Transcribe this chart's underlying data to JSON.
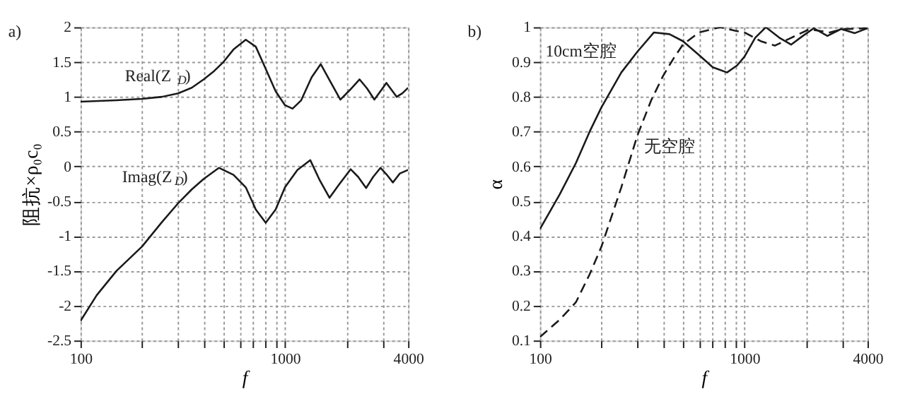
{
  "chart_data": [
    {
      "type": "line",
      "xlabel": "f",
      "ylabel": "阻抗×ρ₀c₀",
      "log": "x",
      "grid": true,
      "xlim": [
        100,
        4000
      ],
      "xticks": [
        100,
        {
          "value": 200,
          "label": null
        },
        {
          "value": 300,
          "label": null
        },
        {
          "value": 400,
          "label": null
        },
        {
          "value": 500,
          "label": null
        },
        {
          "value": 600,
          "label": null
        },
        {
          "value": 700,
          "label": null
        },
        {
          "value": 800,
          "label": null
        },
        {
          "value": 900,
          "label": null
        },
        1000,
        {
          "value": 2000,
          "label": null
        },
        {
          "value": 3000,
          "label": null
        },
        4000
      ],
      "ylim": [
        -2.5,
        2
      ],
      "yticks": [
        -2.5,
        -2,
        -1.5,
        -1,
        -0.5,
        0,
        0.5,
        1,
        1.5,
        2
      ],
      "annotations": [
        "a)",
        "Real(Z$_{D}$)",
        "Imag(Z$_{D}$)"
      ],
      "series": [
        {
          "color": "#1a1a1a",
          "line_style": "solid",
          "x": [
            100,
            150,
            200,
            250,
            300,
            350,
            400,
            450,
            500,
            560,
            643,
            720,
            800,
            900,
            1000,
            1089,
            1200,
            1350,
            1496,
            1680,
            1866,
            2080,
            2317,
            2520,
            2736,
            2930,
            3133,
            3320,
            3515,
            3750,
            4000
          ],
          "values": [
            0.93,
            0.95,
            0.97,
            1.0,
            1.05,
            1.13,
            1.25,
            1.37,
            1.5,
            1.68,
            1.82,
            1.72,
            1.42,
            1.08,
            0.88,
            0.83,
            0.95,
            1.28,
            1.47,
            1.2,
            0.96,
            1.1,
            1.25,
            1.12,
            0.96,
            1.08,
            1.2,
            1.1,
            1.0,
            1.05,
            1.13
          ]
        },
        {
          "color": "#1a1a1a",
          "line_style": "solid",
          "x": [
            100,
            120,
            150,
            200,
            250,
            300,
            350,
            400,
            475,
            560,
            643,
            720,
            805,
            900,
            1000,
            1150,
            1330,
            1480,
            1652,
            1850,
            2094,
            2280,
            2494,
            2700,
            2931,
            3150,
            3371,
            3650,
            4000
          ],
          "values": [
            -2.22,
            -1.85,
            -1.5,
            -1.15,
            -0.8,
            -0.53,
            -0.33,
            -0.18,
            -0.02,
            -0.12,
            -0.3,
            -0.62,
            -0.81,
            -0.62,
            -0.3,
            -0.05,
            0.09,
            -0.2,
            -0.45,
            -0.25,
            -0.04,
            -0.15,
            -0.31,
            -0.15,
            -0.02,
            -0.12,
            -0.23,
            -0.1,
            -0.05
          ]
        }
      ]
    },
    {
      "type": "line",
      "xlabel": "f",
      "ylabel": "α",
      "log": "x",
      "grid": true,
      "xlim": [
        100,
        4000
      ],
      "xticks": [
        100,
        {
          "value": 200,
          "label": null
        },
        {
          "value": 300,
          "label": null
        },
        {
          "value": 400,
          "label": null
        },
        {
          "value": 500,
          "label": null
        },
        {
          "value": 600,
          "label": null
        },
        {
          "value": 700,
          "label": null
        },
        {
          "value": 800,
          "label": null
        },
        {
          "value": 900,
          "label": null
        },
        1000,
        {
          "value": 2000,
          "label": null
        },
        {
          "value": 3000,
          "label": null
        },
        4000
      ],
      "ylim": [
        0.1,
        1
      ],
      "yticks": [
        0.1,
        0.2,
        0.3,
        0.4,
        0.5,
        0.6,
        0.7,
        0.8,
        0.9,
        1
      ],
      "annotations": [
        "b)",
        "10cm空腔",
        "无空腔"
      ],
      "series": [
        {
          "color": "#1a1a1a",
          "line_style": "solid",
          "x": [
            100,
            125,
            150,
            175,
            200,
            250,
            300,
            361,
            430,
            500,
            600,
            700,
            822,
            920,
            1000,
            1130,
            1273,
            1480,
            1691,
            1930,
            2184,
            2546,
            2971,
            3467,
            4000
          ],
          "values": [
            0.42,
            0.52,
            0.61,
            0.7,
            0.77,
            0.87,
            0.93,
            0.985,
            0.98,
            0.96,
            0.92,
            0.885,
            0.87,
            0.89,
            0.915,
            0.97,
            1.0,
            0.97,
            0.95,
            0.975,
            0.997,
            0.975,
            0.995,
            0.983,
            0.997
          ]
        },
        {
          "color": "#1a1a1a",
          "line_style": "dashed",
          "x": [
            100,
            125,
            150,
            175,
            200,
            250,
            300,
            350,
            400,
            450,
            500,
            600,
            762,
            900,
            1000,
            1200,
            1409,
            1700,
            2073,
            2612,
            3000,
            4000
          ],
          "values": [
            0.11,
            0.16,
            0.21,
            0.29,
            0.37,
            0.54,
            0.69,
            0.79,
            0.86,
            0.91,
            0.95,
            0.985,
            1.0,
            0.99,
            0.985,
            0.96,
            0.947,
            0.97,
            0.994,
            0.985,
            0.994,
            0.997
          ]
        }
      ]
    }
  ]
}
